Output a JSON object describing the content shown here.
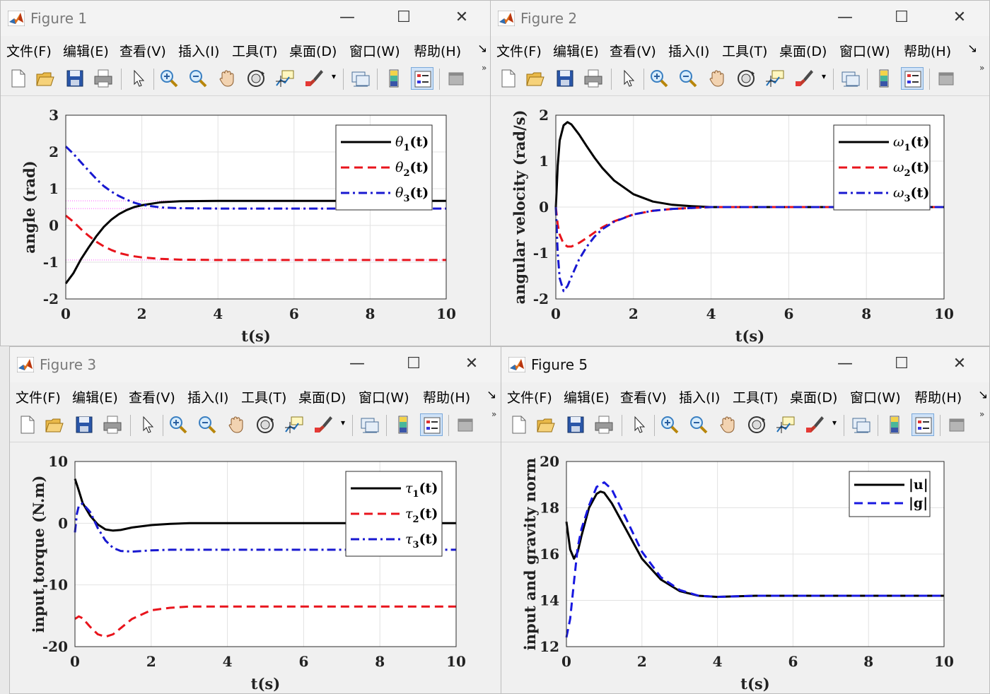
{
  "menu": [
    "文件(F)",
    "编辑(E)",
    "查看(V)",
    "插入(I)",
    "工具(T)",
    "桌面(D)",
    "窗口(W)",
    "帮助(H)"
  ],
  "window_controls": {
    "minimize": "—",
    "maximize": "☐",
    "close": "✕"
  },
  "toolbar_icons": [
    "new-figure-icon",
    "open-file-icon",
    "save-icon",
    "print-icon",
    "pointer-icon",
    "zoom-in-icon",
    "zoom-out-icon",
    "pan-hand-icon",
    "rotate-3d-icon",
    "data-cursor-icon",
    "brush-icon",
    "link-plot-icon",
    "colorbar-icon",
    "legend-icon",
    "hide-plot-tools-icon"
  ],
  "figures": [
    {
      "title": "Figure 1",
      "active": false,
      "chart_data": {
        "type": "line",
        "xlabel": "t(s)",
        "ylabel": "angle (rad)",
        "xlim": [
          0,
          10
        ],
        "ylim": [
          -2,
          3
        ],
        "xticks": [
          "0",
          "2",
          "4",
          "6",
          "8",
          "10"
        ],
        "yticks": [
          "-2",
          "-1",
          "0",
          "1",
          "2",
          "3"
        ],
        "grid": true,
        "legend_position": "top-right",
        "legend": [
          {
            "sym": "θ",
            "sub": "1",
            "suffix": "(t)"
          },
          {
            "sym": "θ",
            "sub": "2",
            "suffix": "(t)"
          },
          {
            "sym": "θ",
            "sub": "3",
            "suffix": "(t)"
          }
        ],
        "series": [
          {
            "name": "θ1(t)",
            "color": "#000000",
            "style": "solid",
            "x": [
              0,
              0.2,
              0.4,
              0.6,
              0.8,
              1.0,
              1.2,
              1.4,
              1.6,
              1.8,
              2.0,
              2.5,
              3,
              4,
              5,
              6,
              8,
              10
            ],
            "y": [
              -1.58,
              -1.3,
              -0.92,
              -0.6,
              -0.3,
              -0.04,
              0.16,
              0.31,
              0.42,
              0.5,
              0.55,
              0.63,
              0.66,
              0.67,
              0.67,
              0.67,
              0.67,
              0.67
            ]
          },
          {
            "name": "θ2(t)",
            "color": "#e8141c",
            "style": "dashed",
            "x": [
              0,
              0.2,
              0.4,
              0.6,
              0.8,
              1.0,
              1.2,
              1.4,
              1.6,
              1.8,
              2.0,
              2.5,
              3,
              4,
              5,
              6,
              8,
              10
            ],
            "y": [
              0.27,
              0.1,
              -0.1,
              -0.28,
              -0.44,
              -0.57,
              -0.67,
              -0.75,
              -0.8,
              -0.84,
              -0.87,
              -0.91,
              -0.93,
              -0.94,
              -0.94,
              -0.94,
              -0.94,
              -0.94
            ]
          },
          {
            "name": "θ3(t)",
            "color": "#1818d0",
            "style": "dashdot",
            "x": [
              0,
              0.2,
              0.4,
              0.6,
              0.8,
              1.0,
              1.2,
              1.4,
              1.6,
              1.8,
              2.0,
              2.5,
              3,
              4,
              5,
              6,
              8,
              10
            ],
            "y": [
              2.15,
              1.95,
              1.72,
              1.49,
              1.27,
              1.07,
              0.92,
              0.8,
              0.7,
              0.62,
              0.56,
              0.49,
              0.47,
              0.46,
              0.46,
              0.46,
              0.46,
              0.46
            ]
          }
        ],
        "reference_lines": [
          {
            "y": 0.67,
            "color": "#ff55ff"
          },
          {
            "y": 0.46,
            "color": "#ff55ff"
          },
          {
            "y": -0.94,
            "color": "#ff55ff"
          }
        ]
      }
    },
    {
      "title": "Figure 2",
      "active": false,
      "chart_data": {
        "type": "line",
        "xlabel": "t(s)",
        "ylabel": "angular velocity (rad/s)",
        "xlim": [
          0,
          10
        ],
        "ylim": [
          -2,
          2
        ],
        "xticks": [
          "0",
          "2",
          "4",
          "6",
          "8",
          "10"
        ],
        "yticks": [
          "-2",
          "-1",
          "0",
          "1",
          "2"
        ],
        "grid": true,
        "legend_position": "top-right",
        "legend": [
          {
            "sym": "ω",
            "sub": "1",
            "suffix": "(t)"
          },
          {
            "sym": "ω",
            "sub": "2",
            "suffix": "(t)"
          },
          {
            "sym": "ω",
            "sub": "3",
            "suffix": "(t)"
          }
        ],
        "series": [
          {
            "name": "ω1(t)",
            "color": "#000000",
            "style": "solid",
            "x": [
              0,
              0.05,
              0.1,
              0.2,
              0.3,
              0.4,
              0.6,
              0.8,
              1.0,
              1.2,
              1.5,
              2.0,
              2.5,
              3,
              3.5,
              4,
              5,
              6,
              10
            ],
            "y": [
              -0.02,
              0.9,
              1.45,
              1.78,
              1.85,
              1.8,
              1.58,
              1.32,
              1.07,
              0.85,
              0.58,
              0.28,
              0.12,
              0.05,
              0.02,
              0.0,
              0.0,
              0.0,
              0.0
            ]
          },
          {
            "name": "ω2(t)",
            "color": "#e8141c",
            "style": "dashed",
            "x": [
              0,
              0.05,
              0.1,
              0.2,
              0.3,
              0.4,
              0.6,
              0.8,
              1.0,
              1.2,
              1.5,
              2.0,
              2.5,
              3,
              3.5,
              4,
              5,
              6,
              10
            ],
            "y": [
              0.0,
              -0.38,
              -0.6,
              -0.8,
              -0.86,
              -0.86,
              -0.78,
              -0.67,
              -0.55,
              -0.44,
              -0.31,
              -0.16,
              -0.08,
              -0.04,
              -0.02,
              0.0,
              0.0,
              0.0,
              0.0
            ]
          },
          {
            "name": "ω3(t)",
            "color": "#1818d0",
            "style": "dashdot",
            "x": [
              0,
              0.05,
              0.1,
              0.2,
              0.3,
              0.4,
              0.6,
              0.8,
              1.0,
              1.2,
              1.5,
              2.0,
              2.5,
              3,
              3.5,
              4,
              5,
              6,
              10
            ],
            "y": [
              0.0,
              -1.0,
              -1.55,
              -1.83,
              -1.72,
              -1.52,
              -1.14,
              -0.86,
              -0.64,
              -0.48,
              -0.32,
              -0.16,
              -0.08,
              -0.04,
              -0.02,
              0.0,
              0.0,
              0.0,
              0.0
            ]
          }
        ]
      }
    },
    {
      "title": "Figure 3",
      "active": false,
      "chart_data": {
        "type": "line",
        "xlabel": "t(s)",
        "ylabel": "input torque (N.m)",
        "xlim": [
          0,
          10
        ],
        "ylim": [
          -20,
          10
        ],
        "xticks": [
          "0",
          "2",
          "4",
          "6",
          "8",
          "10"
        ],
        "yticks": [
          "-20",
          "-10",
          "0",
          "10"
        ],
        "grid": true,
        "legend_position": "top-right",
        "legend": [
          {
            "sym": "τ",
            "sub": "1",
            "suffix": "(t)"
          },
          {
            "sym": "τ",
            "sub": "2",
            "suffix": "(t)"
          },
          {
            "sym": "τ",
            "sub": "3",
            "suffix": "(t)"
          }
        ],
        "series": [
          {
            "name": "τ1(t)",
            "color": "#000000",
            "style": "solid",
            "x": [
              0,
              0.1,
              0.2,
              0.4,
              0.6,
              0.8,
              1.0,
              1.2,
              1.5,
              2.0,
              2.5,
              3,
              4,
              6,
              8,
              10
            ],
            "y": [
              7.2,
              5.3,
              3.3,
              1.2,
              -0.2,
              -1.0,
              -1.2,
              -1.1,
              -0.7,
              -0.3,
              -0.1,
              0.0,
              0.0,
              0.0,
              0.0,
              0.0
            ]
          },
          {
            "name": "τ2(t)",
            "color": "#e8141c",
            "style": "dashed",
            "x": [
              0,
              0.1,
              0.2,
              0.4,
              0.6,
              0.8,
              1.0,
              1.2,
              1.5,
              2.0,
              2.5,
              3,
              4,
              6,
              8,
              10
            ],
            "y": [
              -15.5,
              -15.1,
              -15.4,
              -16.8,
              -18.0,
              -18.4,
              -18.0,
              -17.0,
              -15.5,
              -14.1,
              -13.7,
              -13.5,
              -13.5,
              -13.5,
              -13.5,
              -13.5
            ]
          },
          {
            "name": "τ3(t)",
            "color": "#1818d0",
            "style": "dashdot",
            "x": [
              0,
              0.05,
              0.1,
              0.2,
              0.4,
              0.6,
              0.8,
              1.0,
              1.2,
              1.5,
              2.0,
              2.5,
              3,
              4,
              6,
              8,
              10
            ],
            "y": [
              -1.5,
              1.5,
              2.8,
              3.2,
              1.8,
              -0.8,
              -2.8,
              -4.0,
              -4.5,
              -4.6,
              -4.4,
              -4.3,
              -4.3,
              -4.3,
              -4.3,
              -4.3,
              -4.3
            ]
          }
        ]
      }
    },
    {
      "title": "Figure 5",
      "active": true,
      "chart_data": {
        "type": "line",
        "xlabel": "t(s)",
        "ylabel": "input and gravity norm",
        "xlim": [
          0,
          10
        ],
        "ylim": [
          12,
          20
        ],
        "xticks": [
          "0",
          "2",
          "4",
          "6",
          "8",
          "10"
        ],
        "yticks": [
          "12",
          "14",
          "16",
          "18",
          "20"
        ],
        "grid": true,
        "legend_position": "top-right",
        "legend": [
          {
            "sym": "",
            "sub": "",
            "suffix": "|u|"
          },
          {
            "sym": "",
            "sub": "",
            "suffix": "|g|"
          }
        ],
        "series": [
          {
            "name": "|u|",
            "color": "#000000",
            "style": "solid",
            "x": [
              0,
              0.1,
              0.2,
              0.3,
              0.4,
              0.6,
              0.8,
              0.9,
              1.0,
              1.2,
              1.5,
              2.0,
              2.5,
              3.0,
              3.5,
              4.0,
              5,
              6,
              8,
              10
            ],
            "y": [
              17.4,
              16.2,
              15.8,
              16.1,
              16.8,
              18.0,
              18.6,
              18.7,
              18.65,
              18.2,
              17.3,
              15.8,
              14.9,
              14.4,
              14.2,
              14.15,
              14.2,
              14.2,
              14.2,
              14.2
            ]
          },
          {
            "name": "|g|",
            "color": "#1818e0",
            "style": "dashed",
            "x": [
              0,
              0.1,
              0.2,
              0.3,
              0.4,
              0.6,
              0.8,
              1.0,
              1.2,
              1.5,
              2.0,
              2.5,
              3.0,
              3.5,
              4.0,
              5,
              6,
              8,
              10
            ],
            "y": [
              12.4,
              13.2,
              14.8,
              16.3,
              17.1,
              18.1,
              18.9,
              19.1,
              18.8,
              17.8,
              16.1,
              15.0,
              14.45,
              14.2,
              14.15,
              14.2,
              14.2,
              14.2,
              14.2
            ]
          }
        ]
      }
    }
  ]
}
